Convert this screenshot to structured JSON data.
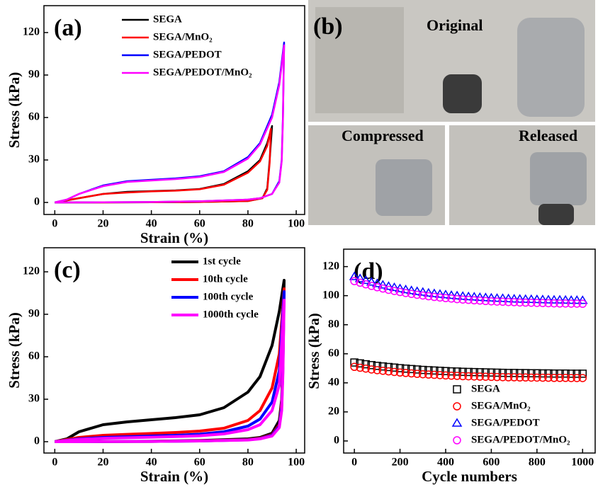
{
  "chart_data": [
    {
      "type": "line",
      "title": "(a)",
      "x_label": "Strain (%)",
      "y_label": "Stress (kPa)",
      "xlim": [
        -4.5,
        103.5
      ],
      "ylim": [
        -8.5,
        139
      ],
      "xticks": [
        0,
        20,
        40,
        60,
        80,
        100
      ],
      "yticks": [
        0,
        30,
        60,
        90,
        120
      ],
      "legend": "upper right",
      "series": [
        {
          "name": "SEGA",
          "color": "#000000",
          "x": [
            0,
            5,
            10,
            20,
            30,
            40,
            50,
            60,
            70,
            80,
            85,
            88,
            90,
            89,
            88,
            86,
            80,
            60,
            40,
            20,
            5,
            0
          ],
          "values": [
            0,
            1.5,
            3,
            6,
            7.5,
            8,
            8.5,
            9.5,
            13,
            22,
            30,
            42,
            54,
            30,
            10,
            3,
            1,
            0.3,
            0.1,
            0,
            0,
            0
          ]
        },
        {
          "name": "SEGA/MnO₂",
          "color": "#ff0000",
          "x": [
            0,
            5,
            10,
            20,
            30,
            40,
            50,
            60,
            70,
            80,
            85,
            88,
            89.5,
            89,
            88,
            86,
            80,
            60,
            40,
            20,
            5,
            0
          ],
          "values": [
            0,
            1.5,
            3,
            6,
            7,
            7.8,
            8.3,
            9.3,
            12.5,
            21,
            29,
            40,
            52,
            28,
            9,
            3,
            1,
            0.3,
            0.1,
            0,
            0,
            0
          ]
        },
        {
          "name": "SEGA/PEDOT",
          "color": "#0000ff",
          "x": [
            0,
            5,
            10,
            20,
            30,
            40,
            50,
            60,
            70,
            80,
            85,
            90,
            93,
            95,
            94.5,
            94,
            93,
            90,
            85,
            80,
            60,
            40,
            20,
            5,
            0
          ],
          "values": [
            0,
            2,
            6,
            12,
            15,
            16,
            17,
            18.5,
            22,
            32,
            42,
            62,
            85,
            113,
            60,
            30,
            15,
            6,
            3,
            2,
            0.8,
            0.3,
            0.1,
            0,
            0
          ]
        },
        {
          "name": "SEGA/PEDOT/MnO₂",
          "color": "#ff00ff",
          "x": [
            0,
            5,
            10,
            20,
            30,
            40,
            50,
            60,
            70,
            80,
            85,
            90,
            93,
            95,
            94.5,
            94,
            93,
            90,
            85,
            80,
            60,
            40,
            20,
            5,
            0
          ],
          "values": [
            0,
            2,
            6,
            11.5,
            14.5,
            15.5,
            16.5,
            18,
            21.5,
            31,
            41,
            60,
            83,
            111,
            58,
            29,
            14,
            6,
            3,
            2,
            0.8,
            0.3,
            0.1,
            0,
            0
          ]
        }
      ]
    },
    {
      "type": "line",
      "title": "(c)",
      "x_label": "Strain (%)",
      "y_label": "Stress (kPa)",
      "xlim": [
        -4.5,
        103.5
      ],
      "ylim": [
        -8,
        137
      ],
      "xticks": [
        0,
        20,
        40,
        60,
        80,
        100
      ],
      "yticks": [
        0,
        30,
        60,
        90,
        120
      ],
      "legend": "upper right",
      "series": [
        {
          "name": "1st cycle",
          "color": "#000000",
          "x": [
            0,
            5,
            10,
            20,
            30,
            40,
            50,
            60,
            70,
            80,
            85,
            90,
            93,
            95,
            94.5,
            94,
            93,
            90,
            85,
            80,
            60,
            40,
            20,
            5,
            0
          ],
          "values": [
            0,
            2,
            7,
            12,
            14,
            15.5,
            17,
            19,
            24,
            35,
            46,
            68,
            92,
            114,
            60,
            30,
            15,
            6,
            3,
            2,
            0.8,
            0.3,
            0.1,
            0,
            0
          ]
        },
        {
          "name": "10th cycle",
          "color": "#ff0000",
          "x": [
            0,
            5,
            10,
            20,
            30,
            40,
            50,
            60,
            70,
            80,
            85,
            90,
            93,
            95,
            94.5,
            94,
            93,
            90,
            85,
            80,
            60,
            40,
            20,
            5,
            0
          ],
          "values": [
            0,
            1.5,
            3,
            4.5,
            5.2,
            5.8,
            6.5,
            7.5,
            9.5,
            15,
            22,
            38,
            62,
            108,
            55,
            28,
            12,
            5,
            2.5,
            1.5,
            0.6,
            0.2,
            0.1,
            0,
            0
          ]
        },
        {
          "name": "100th cycle",
          "color": "#0000ff",
          "x": [
            0,
            5,
            10,
            20,
            30,
            40,
            50,
            60,
            70,
            80,
            85,
            90,
            93,
            95,
            94.5,
            94,
            93,
            90,
            85,
            80,
            60,
            40,
            20,
            5,
            0
          ],
          "values": [
            0,
            1,
            2,
            3,
            3.5,
            4,
            4.5,
            5.3,
            7,
            11,
            16,
            28,
            50,
            106,
            52,
            25,
            11,
            4.5,
            2.2,
            1.3,
            0.5,
            0.2,
            0.1,
            0,
            0
          ]
        },
        {
          "name": "1000th cycle",
          "color": "#ff00ff",
          "x": [
            0,
            5,
            10,
            20,
            30,
            40,
            50,
            60,
            70,
            80,
            85,
            90,
            93,
            95,
            94.5,
            94,
            93,
            90,
            85,
            80,
            60,
            40,
            20,
            5,
            0
          ],
          "values": [
            0,
            0.8,
            1.6,
            2.4,
            2.8,
            3.2,
            3.6,
            4.2,
            5.5,
            8.5,
            12,
            22,
            40,
            100,
            48,
            22,
            10,
            4,
            2,
            1.2,
            0.5,
            0.2,
            0.1,
            0,
            0
          ]
        }
      ]
    },
    {
      "type": "scatter",
      "title": "(d)",
      "x_label": "Cycle numbers",
      "y_label": "Stress (kPa)",
      "xlim": [
        -47,
        1055
      ],
      "ylim": [
        -8.3,
        132
      ],
      "xticks": [
        0,
        200,
        400,
        600,
        800,
        1000
      ],
      "yticks": [
        0,
        20,
        40,
        60,
        80,
        100,
        120
      ],
      "legend": "lower right",
      "x": [
        0,
        25,
        50,
        75,
        100,
        125,
        150,
        175,
        200,
        225,
        250,
        275,
        300,
        325,
        350,
        375,
        400,
        425,
        450,
        475,
        500,
        525,
        550,
        575,
        600,
        625,
        650,
        675,
        700,
        725,
        750,
        775,
        800,
        825,
        850,
        875,
        900,
        925,
        950,
        975,
        1000
      ],
      "series": [
        {
          "name": "SEGA",
          "color": "#000000",
          "marker": "square",
          "values": [
            54,
            53.4,
            52.8,
            52.2,
            51.7,
            51.3,
            50.9,
            50.5,
            50.1,
            49.8,
            49.5,
            49.2,
            48.9,
            48.7,
            48.5,
            48.3,
            48.1,
            47.9,
            47.8,
            47.6,
            47.5,
            47.4,
            47.3,
            47.2,
            47.1,
            47.0,
            46.9,
            46.8,
            46.8,
            46.7,
            46.7,
            46.6,
            46.6,
            46.5,
            46.5,
            46.4,
            46.4,
            46.4,
            46.3,
            46.3,
            46.3
          ]
        },
        {
          "name": "SEGA/MnO₂",
          "color": "#ff0000",
          "marker": "circle",
          "values": [
            51,
            50.4,
            49.8,
            49.2,
            48.7,
            48.3,
            47.9,
            47.5,
            47.1,
            46.8,
            46.5,
            46.2,
            45.9,
            45.7,
            45.5,
            45.3,
            45.1,
            44.9,
            44.8,
            44.6,
            44.5,
            44.4,
            44.3,
            44.2,
            44.1,
            44.0,
            43.9,
            43.8,
            43.8,
            43.7,
            43.7,
            43.6,
            43.6,
            43.5,
            43.5,
            43.4,
            43.4,
            43.4,
            43.3,
            43.3,
            43.3
          ]
        },
        {
          "name": "SEGA/PEDOT",
          "color": "#0000ff",
          "marker": "triangle",
          "values": [
            113,
            111.6,
            110.4,
            109.2,
            108.2,
            107.2,
            106.3,
            105.5,
            104.7,
            104.0,
            103.4,
            102.8,
            102.3,
            101.7,
            101.3,
            100.9,
            100.5,
            100.1,
            99.8,
            99.5,
            99.2,
            99.0,
            98.7,
            98.5,
            98.3,
            98.1,
            98.0,
            97.8,
            97.6,
            97.5,
            97.4,
            97.3,
            97.2,
            97.1,
            97.0,
            96.9,
            96.9,
            96.8,
            96.7,
            96.7,
            96.6
          ]
        },
        {
          "name": "SEGA/PEDOT/MnO₂",
          "color": "#ff00ff",
          "marker": "circle",
          "values": [
            110,
            108.9,
            107.8,
            106.7,
            105.8,
            104.9,
            104.0,
            103.2,
            102.5,
            101.8,
            101.2,
            100.6,
            100.1,
            99.6,
            99.1,
            98.7,
            98.3,
            98.0,
            97.6,
            97.3,
            97.1,
            96.8,
            96.6,
            96.3,
            96.1,
            95.9,
            95.8,
            95.6,
            95.5,
            95.3,
            95.2,
            95.1,
            95.0,
            94.9,
            94.8,
            94.7,
            94.6,
            94.6,
            94.5,
            94.5,
            94.4
          ]
        }
      ]
    }
  ],
  "photo_panel": {
    "label": "(b)",
    "captions": [
      "Original",
      "Compressed",
      "Released"
    ]
  }
}
